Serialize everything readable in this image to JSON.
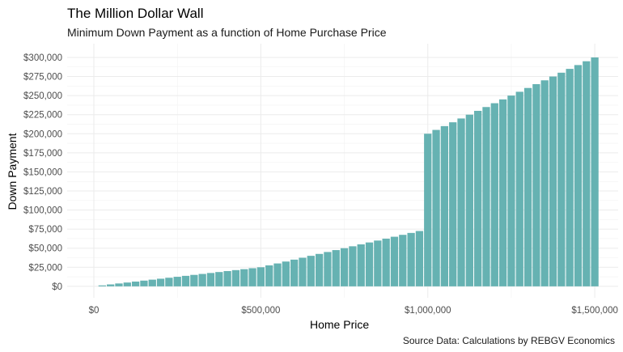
{
  "chart_data": {
    "type": "bar",
    "title": "The Million Dollar Wall",
    "subtitle": "Minimum Down Payment as a function of Home Purchase Price",
    "caption": "Source Data: Calculations by REBGV Economics",
    "xlabel": "Home Price",
    "ylabel": "Down Payment",
    "xlim": [
      -80000,
      1570000
    ],
    "ylim": [
      -15000,
      318000
    ],
    "x_ticks": [
      {
        "value": 0,
        "label": "$0"
      },
      {
        "value": 500000,
        "label": "$500,000"
      },
      {
        "value": 1000000,
        "label": "$1,000,000"
      },
      {
        "value": 1500000,
        "label": "$1,500,000"
      }
    ],
    "y_ticks": [
      {
        "value": 0,
        "label": "$0"
      },
      {
        "value": 25000,
        "label": "$25,000"
      },
      {
        "value": 50000,
        "label": "$50,000"
      },
      {
        "value": 75000,
        "label": "$75,000"
      },
      {
        "value": 100000,
        "label": "$100,000"
      },
      {
        "value": 125000,
        "label": "$125,000"
      },
      {
        "value": 150000,
        "label": "$150,000"
      },
      {
        "value": 175000,
        "label": "$175,000"
      },
      {
        "value": 200000,
        "label": "$200,000"
      },
      {
        "value": 225000,
        "label": "$225,000"
      },
      {
        "value": 250000,
        "label": "$250,000"
      },
      {
        "value": 275000,
        "label": "$275,000"
      },
      {
        "value": 300000,
        "label": "$300,000"
      }
    ],
    "bar_color": "#66b2b2",
    "grid": true,
    "x": [
      25000,
      50000,
      75000,
      100000,
      125000,
      150000,
      175000,
      200000,
      225000,
      250000,
      275000,
      300000,
      325000,
      350000,
      375000,
      400000,
      425000,
      450000,
      475000,
      500000,
      525000,
      550000,
      575000,
      600000,
      625000,
      650000,
      675000,
      700000,
      725000,
      750000,
      775000,
      800000,
      825000,
      850000,
      875000,
      900000,
      925000,
      950000,
      975000,
      1000000,
      1025000,
      1050000,
      1075000,
      1100000,
      1125000,
      1150000,
      1175000,
      1200000,
      1225000,
      1250000,
      1275000,
      1300000,
      1325000,
      1350000,
      1375000,
      1400000,
      1425000,
      1450000,
      1475000,
      1500000
    ],
    "values": [
      1250,
      2500,
      3750,
      5000,
      6250,
      7500,
      8750,
      10000,
      11250,
      12500,
      13750,
      15000,
      16250,
      17500,
      18750,
      20000,
      21250,
      22500,
      23750,
      25000,
      27500,
      30000,
      32500,
      35000,
      37500,
      40000,
      42500,
      45000,
      47500,
      50000,
      52500,
      55000,
      57500,
      60000,
      62500,
      65000,
      67500,
      70000,
      72500,
      200000,
      205000,
      210000,
      215000,
      220000,
      225000,
      230000,
      235000,
      240000,
      245000,
      250000,
      255000,
      260000,
      265000,
      270000,
      275000,
      280000,
      285000,
      290000,
      295000,
      300000
    ]
  }
}
